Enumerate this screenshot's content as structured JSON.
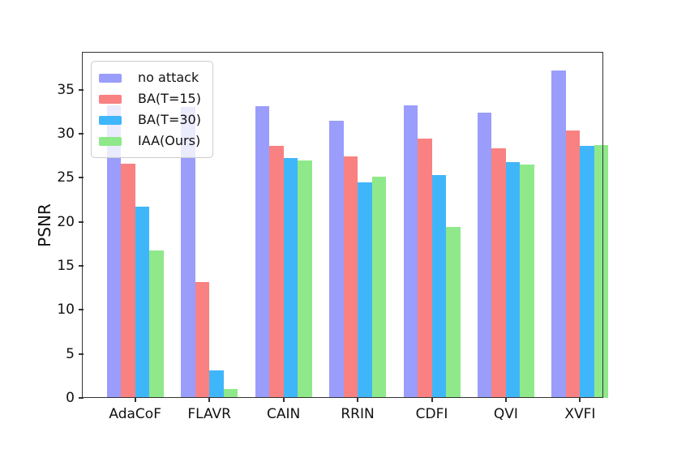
{
  "chart_data": {
    "type": "bar",
    "ylabel": "PSNR",
    "categories": [
      "AdaCoF",
      "FLAVR",
      "CAIN",
      "RRIN",
      "CDFI",
      "QVI",
      "XVFI"
    ],
    "series": [
      {
        "name": "no attack",
        "color": "#9a9dfb",
        "values": [
          33.2,
          33.0,
          33.1,
          31.5,
          33.2,
          32.4,
          37.2
        ]
      },
      {
        "name": "BA(T=15)",
        "color": "#f98181",
        "values": [
          26.6,
          13.2,
          28.6,
          27.4,
          29.4,
          28.3,
          30.4
        ]
      },
      {
        "name": "BA(T=30)",
        "color": "#40b6fa",
        "values": [
          21.7,
          3.1,
          27.2,
          24.5,
          25.3,
          26.8,
          28.6
        ]
      },
      {
        "name": "IAA(Ours)",
        "color": "#8fe98a",
        "values": [
          16.7,
          1.0,
          27.0,
          25.1,
          19.4,
          26.5,
          28.7
        ]
      }
    ],
    "ylim": [
      0,
      39.1
    ],
    "yticks": [
      0,
      5,
      10,
      15,
      20,
      25,
      30,
      35
    ],
    "legend_position": "upper left",
    "grid": false
  }
}
